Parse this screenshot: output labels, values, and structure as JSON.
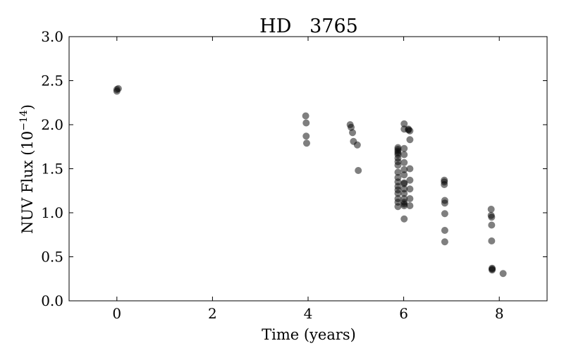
{
  "chart_data": {
    "type": "scatter",
    "title": "HD   3765",
    "xlabel": "Time (years)",
    "ylabel": "NUV Flux (10",
    "ylabel_exp": "−14",
    "ylabel_close": ")",
    "xlim": [
      -1,
      9
    ],
    "ylim": [
      0.0,
      3.0
    ],
    "xticks": [
      0,
      2,
      4,
      6,
      8
    ],
    "xtick_labels": [
      "0",
      "2",
      "4",
      "6",
      "8"
    ],
    "yticks": [
      0.0,
      0.5,
      1.0,
      1.5,
      2.0,
      2.5,
      3.0
    ],
    "ytick_labels": [
      "0.0",
      "0.5",
      "1.0",
      "1.5",
      "2.0",
      "2.5",
      "3.0"
    ],
    "grid": false,
    "legend": "none",
    "marker_color": "#000000",
    "marker_opacity": 0.5,
    "series": [
      {
        "x": [
          0.0,
          0.03,
          0.0,
          3.95,
          3.96,
          3.96,
          3.97,
          4.88,
          4.9,
          4.93,
          4.95,
          5.03,
          5.05,
          5.88,
          5.88,
          5.88,
          5.88,
          5.88,
          5.88,
          5.88,
          5.88,
          5.88,
          5.88,
          5.88,
          5.88,
          5.88,
          5.88,
          5.88,
          5.88,
          5.88,
          6.01,
          6.01,
          6.01,
          6.01,
          6.01,
          6.01,
          6.01,
          6.01,
          6.01,
          6.01,
          6.01,
          6.01,
          6.01,
          6.01,
          6.01,
          6.01,
          6.1,
          6.1,
          6.13,
          6.13,
          6.13,
          6.13,
          6.13,
          6.13,
          6.13,
          6.85,
          6.85,
          6.85,
          6.86,
          6.86,
          6.86,
          6.86,
          6.86,
          7.83,
          7.83,
          7.84,
          7.84,
          7.84,
          7.85,
          7.85,
          7.85,
          8.08
        ],
        "y": [
          2.38,
          2.41,
          2.4,
          2.1,
          2.02,
          1.87,
          1.79,
          2.0,
          1.97,
          1.91,
          1.81,
          1.77,
          1.48,
          1.74,
          1.72,
          1.7,
          1.68,
          1.66,
          1.62,
          1.58,
          1.54,
          1.46,
          1.4,
          1.35,
          1.3,
          1.26,
          1.22,
          1.16,
          1.12,
          1.07,
          2.01,
          1.95,
          1.73,
          1.66,
          1.57,
          1.49,
          1.43,
          1.34,
          1.33,
          1.27,
          1.22,
          1.16,
          1.12,
          1.08,
          1.1,
          0.93,
          1.95,
          1.94,
          1.93,
          1.83,
          1.5,
          1.37,
          1.27,
          1.16,
          1.08,
          1.37,
          1.35,
          1.32,
          1.14,
          1.11,
          0.99,
          0.8,
          0.67,
          1.04,
          0.97,
          0.95,
          0.86,
          0.68,
          0.37,
          0.35,
          0.36,
          0.31
        ]
      }
    ]
  }
}
